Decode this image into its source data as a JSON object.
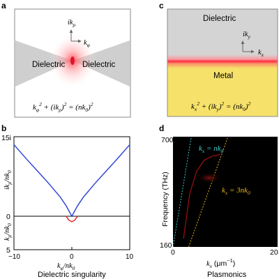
{
  "panels": {
    "a": {
      "letter": "a",
      "left_label": "Dielectric",
      "right_label": "Dielectric",
      "axis_up": "ik",
      "axis_up_sub": "ρ",
      "axis_right": "k",
      "axis_right_sub": "φ",
      "equation": {
        "p1": "k",
        "p1_sub": "φ",
        "p1_sup": "2",
        "p2": " + (ik",
        "p2_sub": "ρ",
        "p2_close": ")",
        "p2_sup": "2",
        "p3": " = (nk",
        "p3_sub": "0",
        "p3_close": ")",
        "p3_sup": "2"
      }
    },
    "c": {
      "letter": "c",
      "top_label": "Dielectric",
      "bottom_label": "Metal",
      "axis_up": "ik",
      "axis_up_sub": "y",
      "axis_right": "k",
      "axis_right_sub": "x",
      "equation": {
        "p1": "k",
        "p1_sub": "x",
        "p1_sup": "2",
        "p2": " + (ik",
        "p2_sub": "y",
        "p2_close": ")",
        "p2_sup": "2",
        "p3": " = (nk",
        "p3_sub": "0",
        "p3_close": ")",
        "p3_sup": "2"
      }
    },
    "b": {
      "letter": "b",
      "caption": "Dielectric singularity",
      "ylabel_top": {
        "main": "ik",
        "sub": "ρ",
        "slash": "/nk",
        "sub2": "0"
      },
      "ylabel_bottom": {
        "main": "k",
        "sub": "ρ",
        "slash": "/nk",
        "sub2": "0"
      },
      "xlabel": {
        "main": "k",
        "sub": "φ",
        "slash": "/nk",
        "sub2": "0"
      },
      "xticks": [
        "−10",
        "0",
        "10"
      ],
      "yticks": [
        "15i",
        "0",
        "5"
      ]
    },
    "d": {
      "letter": "d",
      "caption": "Plasmonics",
      "ylabel": "Frequency (THz)",
      "xlabel": {
        "main": "k",
        "sub": "x",
        "unit": " (μm",
        "sup": "−1",
        "close": ")"
      },
      "yticks": [
        "700",
        "160"
      ],
      "xticks": [
        "0",
        "20"
      ],
      "line1": {
        "main": "k",
        "sub": "x",
        "eq": " = nk",
        "sub2": "0"
      },
      "line2": {
        "main": "k",
        "sub": "x",
        "eq": " = 3nk",
        "sub2": "0"
      }
    }
  },
  "chart_data": [
    {
      "type": "line",
      "panel": "b",
      "xlim": [
        -10,
        10
      ],
      "x_ticks": [
        -10,
        0,
        10
      ],
      "y_ticks_labels": [
        "15i",
        "0",
        "5"
      ],
      "series": [
        {
          "color": "#2a3fd6",
          "x": [
            -10,
            -8,
            -6,
            -4,
            -2,
            -1,
            0,
            1,
            2,
            4,
            6,
            8,
            10
          ],
          "y": [
            13.5,
            11.0,
            8.6,
            6.2,
            3.6,
            2.0,
            0,
            2.0,
            3.6,
            6.2,
            8.6,
            11.0,
            13.5
          ]
        },
        {
          "color": "#e02020",
          "x": [
            -1.0,
            -0.5,
            0,
            0.5,
            1.0
          ],
          "y": [
            0,
            -0.7,
            -1.0,
            -0.7,
            0
          ]
        }
      ]
    },
    {
      "type": "line",
      "panel": "d",
      "xlim": [
        0,
        20
      ],
      "ylim": [
        160,
        700
      ],
      "series": [
        {
          "color": "#40c8c8",
          "dashed": true,
          "x": [
            0,
            3.5
          ],
          "y": [
            160,
            700
          ]
        },
        {
          "color": "#e0b020",
          "dashed": true,
          "x": [
            3,
            10.5
          ],
          "y": [
            160,
            700
          ]
        },
        {
          "color": "#8a1010",
          "x": [
            2,
            3.2,
            4.5,
            6,
            7.5,
            9
          ],
          "y": [
            200,
            420,
            530,
            585,
            605,
            612
          ]
        }
      ]
    }
  ]
}
